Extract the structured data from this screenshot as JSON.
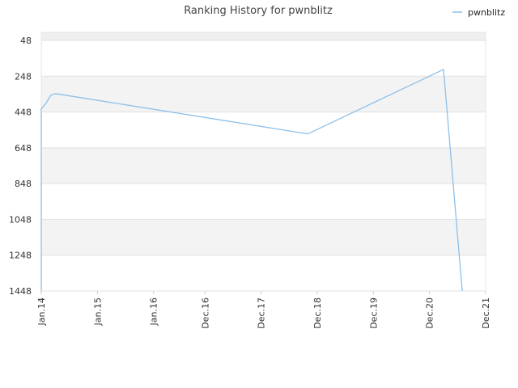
{
  "chart_data": {
    "type": "line",
    "title": "Ranking History for pwnblitz",
    "xlabel": "",
    "ylabel": "",
    "x_tick_labels": [
      "Jan.14",
      "Jan.15",
      "Jan.16",
      "Dec.16",
      "Dec.17",
      "Dec.18",
      "Dec.19",
      "Dec.20",
      "Dec.21"
    ],
    "x_tick_dates": [
      "2014-01",
      "2015-01",
      "2016-01",
      "2016-12",
      "2017-12",
      "2018-12",
      "2019-12",
      "2020-12",
      "2021-12"
    ],
    "y_tick_labels": [
      "48",
      "248",
      "448",
      "648",
      "848",
      "1048",
      "1248",
      "1448"
    ],
    "y_range": [
      48,
      1448
    ],
    "y_reversed": true,
    "grid": true,
    "legend_position": "top-right",
    "series": [
      {
        "name": "pwnblitz",
        "color": "#8cc0ea",
        "points": [
          {
            "x": "2014-01",
            "y": 1448
          },
          {
            "x": "2014-01",
            "y": 430
          },
          {
            "x": "2014-02",
            "y": 400
          },
          {
            "x": "2014-03",
            "y": 355
          },
          {
            "x": "2014-04",
            "y": 345
          },
          {
            "x": "2018-10",
            "y": 570
          },
          {
            "x": "2021-03",
            "y": 210
          },
          {
            "x": "2021-07",
            "y": 1448
          }
        ]
      }
    ]
  }
}
